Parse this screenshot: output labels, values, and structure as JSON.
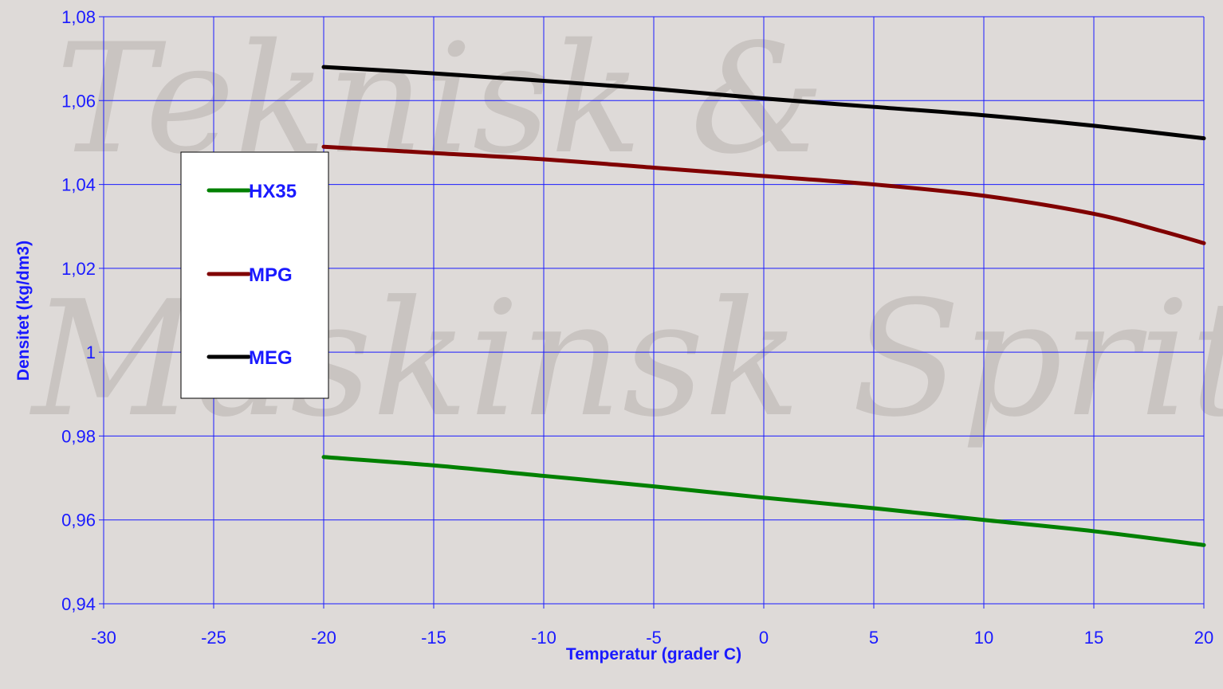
{
  "watermark": [
    "Teknisk &",
    "Maskinsk Sprit"
  ],
  "chart_data": {
    "type": "line",
    "title": "",
    "xlabel": "Temperatur (grader C)",
    "ylabel": "Densitet (kg/dm3)",
    "xlim": [
      -30,
      20
    ],
    "ylim": [
      0.94,
      1.08
    ],
    "x_ticks": [
      -30,
      -25,
      -20,
      -15,
      -10,
      -5,
      0,
      5,
      10,
      15,
      20
    ],
    "x_tick_labels": [
      "-30",
      "-25",
      "-20",
      "-15",
      "-10",
      "-5",
      "0",
      "5",
      "10",
      "15",
      "20"
    ],
    "y_ticks": [
      0.94,
      0.96,
      0.98,
      1.0,
      1.02,
      1.04,
      1.06,
      1.08
    ],
    "y_tick_labels": [
      "0,94",
      "0,96",
      "0,98",
      "1",
      "1,02",
      "1,04",
      "1,06",
      "1,08"
    ],
    "grid": true,
    "legend_position": "left",
    "series": [
      {
        "name": "HX35",
        "color": "#008000",
        "x": [
          -20,
          -15,
          -10,
          -5,
          0,
          5,
          10,
          15,
          20
        ],
        "values": [
          0.975,
          0.973,
          0.9705,
          0.968,
          0.9653,
          0.9628,
          0.96,
          0.9573,
          0.954
        ]
      },
      {
        "name": "MPG",
        "color": "#800000",
        "x": [
          -20,
          -15,
          -10,
          -5,
          0,
          5,
          10,
          15,
          18,
          20
        ],
        "values": [
          1.049,
          1.0475,
          1.046,
          1.044,
          1.042,
          1.04,
          1.0373,
          1.033,
          1.029,
          1.026
        ]
      },
      {
        "name": "MEG",
        "color": "#000000",
        "x": [
          -20,
          -15,
          -10,
          -5,
          0,
          5,
          10,
          15,
          20
        ],
        "values": [
          1.068,
          1.0665,
          1.0647,
          1.0628,
          1.0605,
          1.0585,
          1.0565,
          1.054,
          1.051
        ]
      }
    ]
  }
}
